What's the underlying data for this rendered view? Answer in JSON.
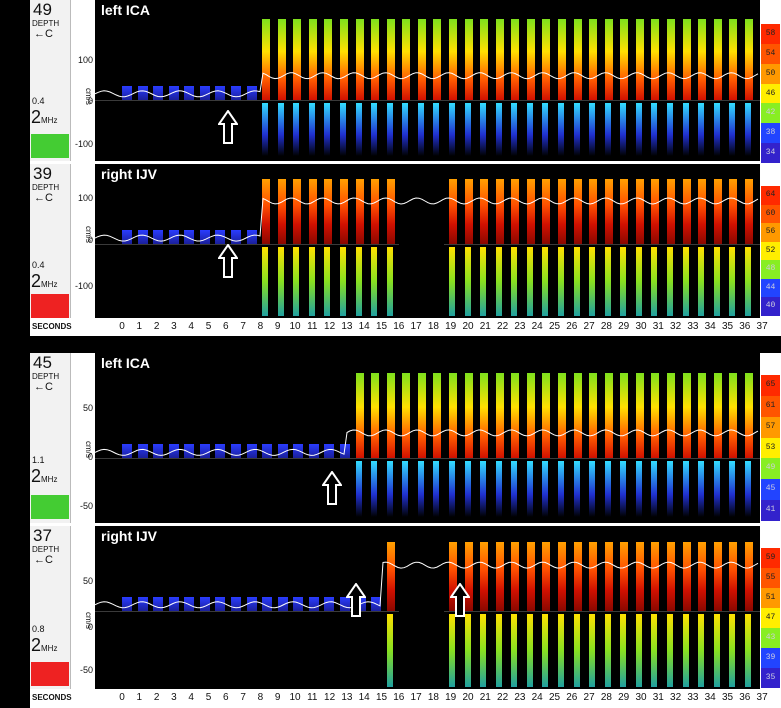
{
  "figures": [
    {
      "panels": [
        {
          "title": "left ICA",
          "depth": "49",
          "gain": "0.4",
          "swatch": "#44cc33",
          "ticks": [
            {
              "label": "100"
            },
            {
              "label": "0"
            },
            {
              "label": "-100"
            }
          ],
          "scale": [
            "58",
            "54",
            "50",
            "46",
            "42",
            "38",
            "34"
          ],
          "shift": 8,
          "type": "art"
        },
        {
          "title": "right IJV",
          "depth": "39",
          "gain": "0.4",
          "swatch": "#ee2222",
          "ticks": [
            {
              "label": "100"
            },
            {
              "label": "0"
            },
            {
              "label": "-100"
            }
          ],
          "scale": [
            "64",
            "60",
            "56",
            "52",
            "48",
            "44",
            "40"
          ],
          "shift": 8,
          "type": "ven"
        }
      ],
      "xticks": [
        "0",
        "1",
        "2",
        "3",
        "4",
        "5",
        "6",
        "7",
        "8",
        "9",
        "10",
        "11",
        "12",
        "13",
        "14",
        "15",
        "16",
        "17",
        "18",
        "19",
        "20",
        "21",
        "22",
        "23",
        "24",
        "25",
        "26",
        "27",
        "28",
        "29",
        "30",
        "31",
        "32",
        "33",
        "34",
        "35",
        "36",
        "37"
      ]
    },
    {
      "panels": [
        {
          "title": "left ICA",
          "depth": "45",
          "gain": "1.1",
          "swatch": "#44cc33",
          "ticks": [
            {
              "label": "50"
            },
            {
              "label": "0"
            },
            {
              "label": "-50"
            }
          ],
          "scale": [
            "65",
            "61",
            "57",
            "53",
            "49",
            "45",
            "41"
          ],
          "shift": 13,
          "type": "art"
        },
        {
          "title": "right IJV",
          "depth": "37",
          "gain": "0.8",
          "swatch": "#ee2222",
          "ticks": [
            {
              "label": "50"
            },
            {
              "label": "0"
            },
            {
              "label": "-50"
            }
          ],
          "scale": [
            "59",
            "55",
            "51",
            "47",
            "43",
            "39",
            "35"
          ],
          "shift": 15,
          "type": "ven2"
        }
      ],
      "xticks": [
        "0",
        "1",
        "2",
        "3",
        "4",
        "5",
        "6",
        "7",
        "8",
        "9",
        "10",
        "11",
        "12",
        "13",
        "14",
        "15",
        "16",
        "17",
        "18",
        "19",
        "20",
        "21",
        "22",
        "23",
        "24",
        "25",
        "26",
        "27",
        "28",
        "29",
        "30",
        "31",
        "32",
        "33",
        "34",
        "35",
        "36",
        "37"
      ]
    }
  ],
  "labels": {
    "depth": "DEPTH",
    "mhz": "2",
    "mhz_unit": "MHz",
    "cms": "cm/s",
    "seconds": "SECONDS",
    "arrow_c": "←C"
  },
  "colors": {
    "scale": [
      "#ff2a00",
      "#ff5500",
      "#ff9900",
      "#ffee00",
      "#88ee22",
      "#2244ff",
      "#3322cc"
    ]
  }
}
